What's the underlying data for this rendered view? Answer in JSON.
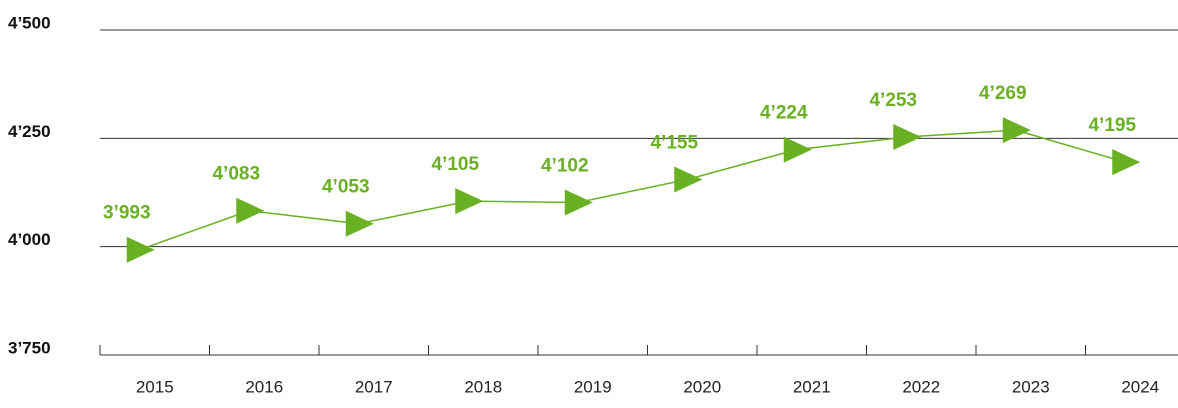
{
  "chart_data": {
    "type": "line",
    "categories": [
      "2015",
      "2016",
      "2017",
      "2018",
      "2019",
      "2020",
      "2021",
      "2022",
      "2023",
      "2024"
    ],
    "values": [
      3993,
      4083,
      4053,
      4105,
      4102,
      4155,
      4224,
      4253,
      4269,
      4195
    ],
    "value_labels": [
      "3’993",
      "4’083",
      "4’053",
      "4’105",
      "4’102",
      "4’155",
      "4’224",
      "4’253",
      "4’269",
      "4’195"
    ],
    "color": "#6ab023",
    "ylim": [
      3750,
      4500
    ],
    "yticks": [
      {
        "value": 3750,
        "label": "3’750"
      },
      {
        "value": 4000,
        "label": "4’000"
      },
      {
        "value": 4250,
        "label": "4’250"
      },
      {
        "value": 4500,
        "label": "4’500"
      }
    ],
    "grid": true
  }
}
